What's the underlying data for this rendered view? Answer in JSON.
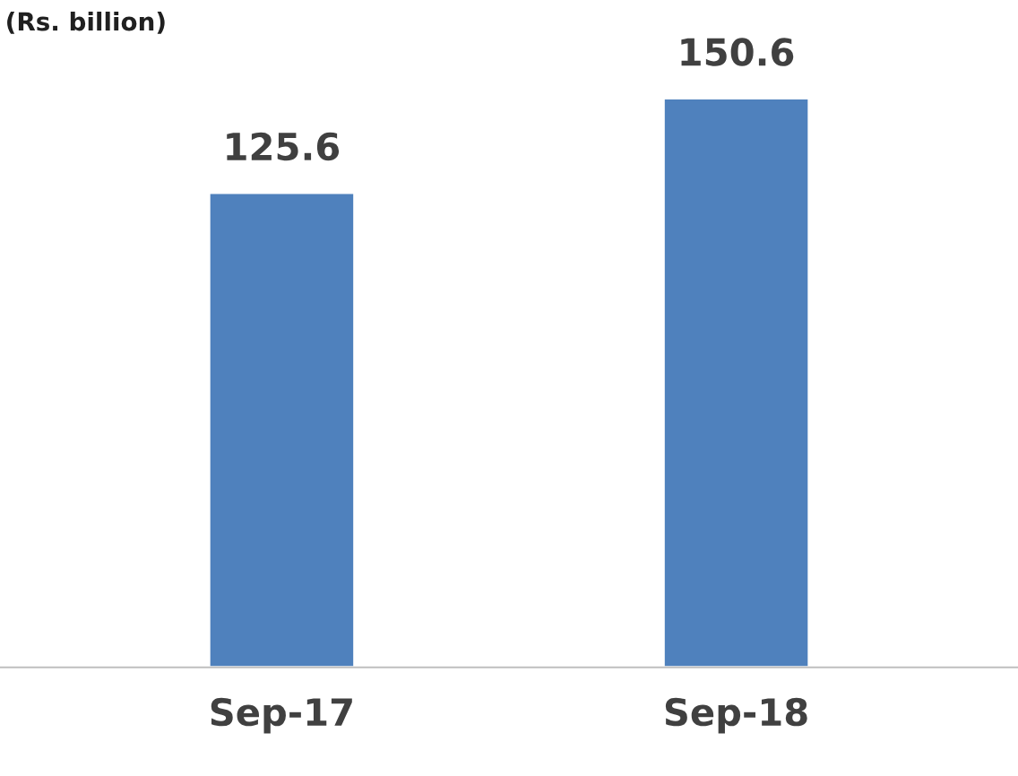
{
  "chart_data": {
    "type": "bar",
    "title": "(Rs. billion)",
    "categories": [
      "Sep-17",
      "Sep-18"
    ],
    "values": [
      125.6,
      150.6
    ],
    "color": "#4f81bd",
    "data_labels": true,
    "grid": false,
    "tick_labels": "x"
  }
}
